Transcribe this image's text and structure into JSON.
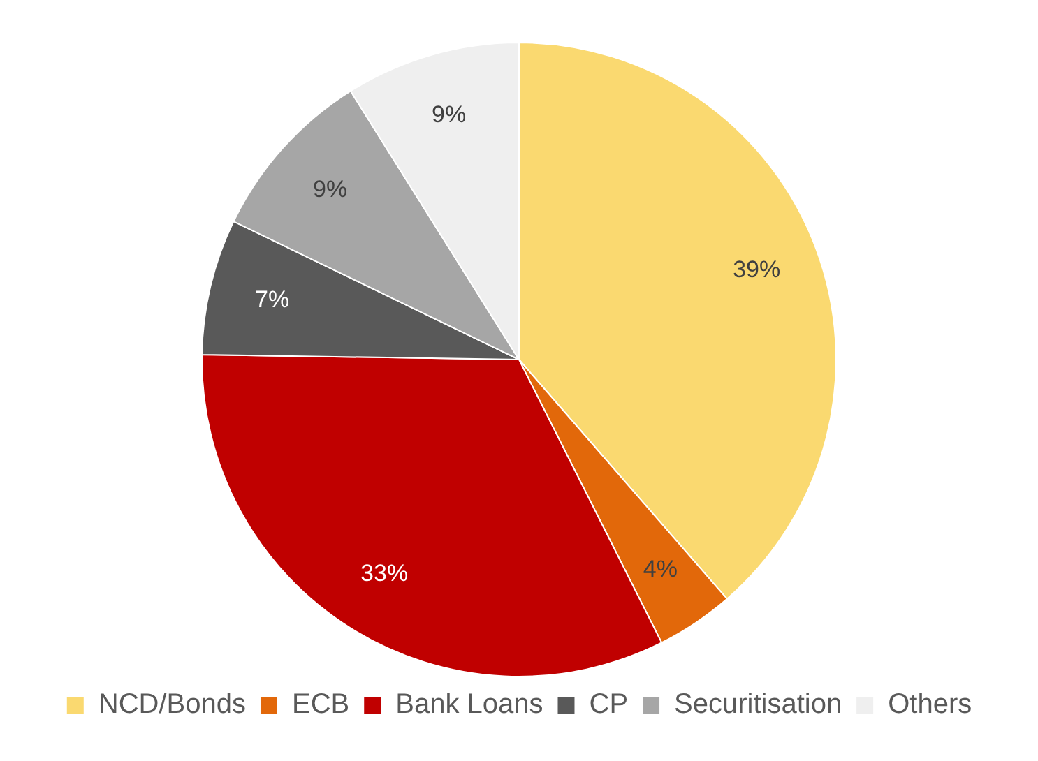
{
  "chart_data": {
    "type": "pie",
    "categories": [
      "NCD/Bonds",
      "ECB",
      "Bank Loans",
      "CP",
      "Securitisation",
      "Others"
    ],
    "values": [
      39,
      4,
      33,
      7,
      9,
      9
    ],
    "colors": [
      "#fad970",
      "#e2680a",
      "#c00000",
      "#595959",
      "#a6a6a6",
      "#efefef"
    ],
    "value_labels": [
      "39%",
      "4%",
      "33%",
      "7%",
      "9%",
      "9%"
    ],
    "legend": "bottom"
  }
}
